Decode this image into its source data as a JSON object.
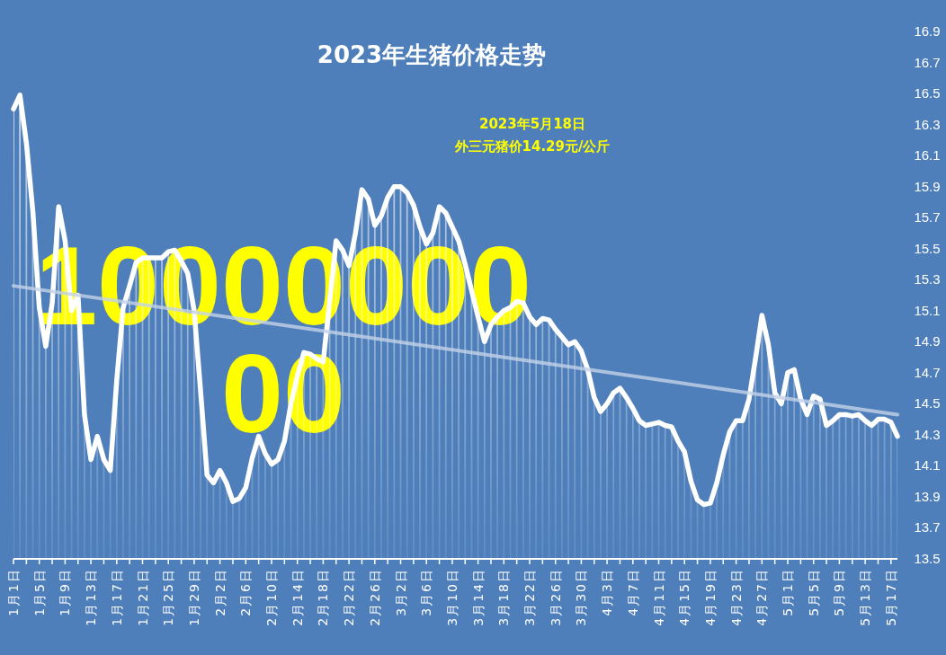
{
  "chart_data": {
    "type": "area",
    "title": "2023年生猪价格走势",
    "annotations": [
      "2023年5月18日",
      "外三元猪价14.29元/公斤",
      "1000000000"
    ],
    "categories": [
      "1月1日",
      null,
      null,
      null,
      "1月5日",
      null,
      null,
      null,
      "1月9日",
      null,
      null,
      null,
      "1月13日",
      null,
      null,
      null,
      "1月17日",
      null,
      null,
      null,
      "1月21日",
      null,
      null,
      null,
      "1月25日",
      null,
      null,
      null,
      "1月29日",
      null,
      null,
      null,
      "2月2日",
      null,
      null,
      null,
      "2月6日",
      null,
      null,
      null,
      "2月10日",
      null,
      null,
      null,
      "2月14日",
      null,
      null,
      null,
      "2月18日",
      null,
      null,
      null,
      "2月22日",
      null,
      null,
      null,
      "2月26日",
      null,
      null,
      null,
      "3月2日",
      null,
      null,
      null,
      "3月6日",
      null,
      null,
      null,
      "3月10日",
      null,
      null,
      null,
      "3月14日",
      null,
      null,
      null,
      "3月18日",
      null,
      null,
      null,
      "3月22日",
      null,
      null,
      null,
      "3月26日",
      null,
      null,
      null,
      "3月30日",
      null,
      null,
      null,
      "4月3日",
      null,
      null,
      null,
      "4月7日",
      null,
      null,
      null,
      "4月11日",
      null,
      null,
      null,
      "4月15日",
      null,
      null,
      null,
      "4月19日",
      null,
      null,
      null,
      "4月23日",
      null,
      null,
      null,
      "4月27日",
      null,
      null,
      null,
      "5月1日",
      null,
      null,
      null,
      "5月5日",
      null,
      null,
      null,
      "5月9日",
      null,
      null,
      null,
      "5月13日",
      null,
      null,
      null,
      "5月17日",
      null
    ],
    "series": [
      {
        "color": "#ffffff",
        "values": [
          16.4,
          16.49,
          16.18,
          15.74,
          15.12,
          14.87,
          15.15,
          15.77,
          15.55,
          15.1,
          15.2,
          14.43,
          14.14,
          14.29,
          14.14,
          14.07,
          14.65,
          15.12,
          15.26,
          15.41,
          15.44,
          15.44,
          15.44,
          15.44,
          15.48,
          15.49,
          15.42,
          15.34,
          15.1,
          14.58,
          14.04,
          13.99,
          14.07,
          13.99,
          13.87,
          13.89,
          13.96,
          14.15,
          14.29,
          14.18,
          14.11,
          14.14,
          14.26,
          14.5,
          14.68,
          14.83,
          14.82,
          14.79,
          14.77,
          15.16,
          15.55,
          15.49,
          15.39,
          15.6,
          15.88,
          15.82,
          15.65,
          15.71,
          15.83,
          15.9,
          15.9,
          15.86,
          15.78,
          15.64,
          15.53,
          15.6,
          15.77,
          15.73,
          15.64,
          15.55,
          15.4,
          15.23,
          15.06,
          14.9,
          15.01,
          15.06,
          15.1,
          15.12,
          15.16,
          15.15,
          15.06,
          15.01,
          15.05,
          15.04,
          14.98,
          14.93,
          14.88,
          14.9,
          14.84,
          14.72,
          14.54,
          14.45,
          14.5,
          14.57,
          14.6,
          14.54,
          14.47,
          14.39,
          14.36,
          14.37,
          14.38,
          14.36,
          14.35,
          14.26,
          14.19,
          14.0,
          13.88,
          13.85,
          13.86,
          13.99,
          14.17,
          14.32,
          14.39,
          14.39,
          14.53,
          14.79,
          15.07,
          14.88,
          14.57,
          14.5,
          14.7,
          14.72,
          14.53,
          14.43,
          14.55,
          14.53,
          14.36,
          14.39,
          14.43,
          14.43,
          14.42,
          14.43,
          14.39,
          14.36,
          14.4,
          14.4,
          14.38,
          14.29
        ]
      },
      {
        "type": "line",
        "color": "#c3d2e7",
        "values": [
          15.26,
          null,
          null,
          null,
          null,
          null,
          null,
          null,
          null,
          null,
          null,
          null,
          null,
          null,
          null,
          null,
          null,
          null,
          null,
          null,
          null,
          null,
          null,
          null,
          null,
          null,
          null,
          null,
          null,
          null,
          null,
          null,
          null,
          null,
          null,
          null,
          null,
          null,
          null,
          null,
          null,
          null,
          null,
          null,
          null,
          null,
          null,
          null,
          null,
          null,
          null,
          null,
          null,
          null,
          null,
          null,
          null,
          null,
          null,
          null,
          null,
          null,
          null,
          null,
          null,
          null,
          null,
          null,
          null,
          null,
          null,
          null,
          null,
          null,
          null,
          null,
          null,
          null,
          null,
          null,
          null,
          null,
          null,
          null,
          null,
          null,
          null,
          null,
          null,
          null,
          null,
          null,
          null,
          null,
          null,
          null,
          null,
          null,
          null,
          null,
          null,
          null,
          null,
          null,
          null,
          null,
          null,
          null,
          null,
          null,
          null,
          null,
          null,
          null,
          null,
          null,
          null,
          null,
          null,
          null,
          null,
          null,
          null,
          null,
          null,
          null,
          null,
          null,
          null,
          null,
          null,
          null,
          null,
          null,
          null,
          null,
          null,
          14.43
        ]
      }
    ],
    "ylim": [
      13.5,
      16.9
    ],
    "yticks": [
      13.5,
      13.7,
      13.9,
      14.1,
      14.3,
      14.5,
      14.7,
      14.9,
      15.1,
      15.3,
      15.5,
      15.7,
      15.9,
      16.1,
      16.3,
      16.5,
      16.7,
      16.9
    ]
  }
}
